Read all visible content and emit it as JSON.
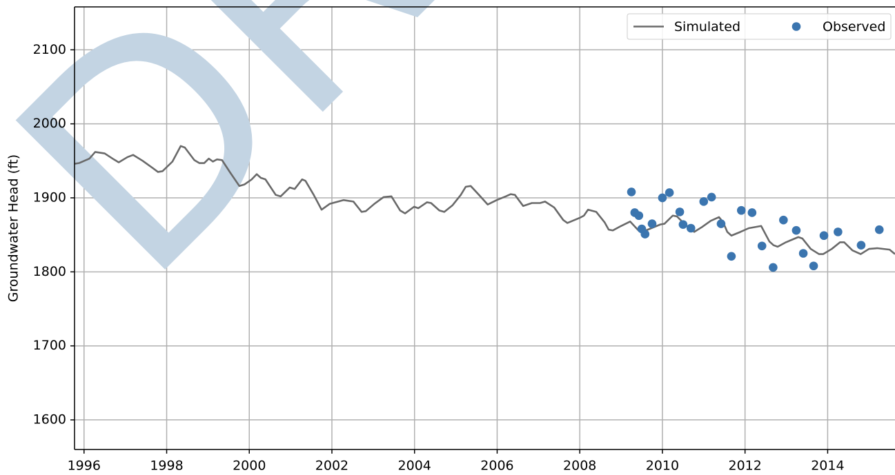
{
  "chart_data": {
    "type": "line",
    "watermark": "DRAFT",
    "y_label": "Groundwater Head (ft)",
    "xlim": [
      1995.77,
      2015.63
    ],
    "ylim": [
      1560,
      2158
    ],
    "xticks": [
      1996,
      1998,
      2000,
      2002,
      2004,
      2006,
      2008,
      2010,
      2012,
      2014
    ],
    "yticks": [
      1600,
      1700,
      1800,
      1900,
      2000,
      2100
    ],
    "grid": true,
    "legend": "upper right",
    "series": [
      {
        "name": "Simulated",
        "mode": "line",
        "color": "#696969",
        "x": [
          1995.77,
          1995.88,
          1996.13,
          1996.27,
          1996.5,
          1996.72,
          1996.84,
          1997.05,
          1997.19,
          1997.42,
          1997.67,
          1997.79,
          1997.9,
          1998.14,
          1998.34,
          1998.44,
          1998.67,
          1998.79,
          1998.91,
          1999.02,
          1999.12,
          1999.22,
          1999.34,
          1999.54,
          1999.76,
          1999.88,
          2000.06,
          2000.18,
          2000.28,
          2000.39,
          2000.64,
          2000.76,
          2000.98,
          2001.1,
          2001.28,
          2001.36,
          2001.56,
          2001.75,
          2001.95,
          2002.28,
          2002.52,
          2002.72,
          2002.82,
          2003.03,
          2003.25,
          2003.44,
          2003.65,
          2003.77,
          2003.99,
          2004.09,
          2004.3,
          2004.4,
          2004.6,
          2004.72,
          2004.92,
          2005.12,
          2005.24,
          2005.36,
          2005.56,
          2005.77,
          2005.99,
          2006.21,
          2006.33,
          2006.43,
          2006.63,
          2006.84,
          2007.04,
          2007.16,
          2007.38,
          2007.6,
          2007.7,
          2008.0,
          2008.1,
          2008.2,
          2008.4,
          2008.6,
          2008.7,
          2008.8,
          2009.0,
          2009.22,
          2009.42,
          2009.52,
          2009.73,
          2009.95,
          2010.05,
          2010.25,
          2010.35,
          2010.55,
          2010.77,
          2010.97,
          2011.17,
          2011.37,
          2011.47,
          2011.57,
          2011.67,
          2011.89,
          2012.09,
          2012.29,
          2012.39,
          2012.59,
          2012.69,
          2012.79,
          2012.99,
          2013.29,
          2013.39,
          2013.59,
          2013.79,
          2013.89,
          2014.1,
          2014.3,
          2014.4,
          2014.6,
          2014.8,
          2015.0,
          2015.2,
          2015.5,
          2015.63
        ],
        "values": [
          1946,
          1947,
          1953,
          1962,
          1960,
          1952,
          1948,
          1955,
          1958,
          1950,
          1940,
          1935,
          1936,
          1949,
          1970,
          1968,
          1951,
          1947,
          1947,
          1953,
          1949,
          1952,
          1951,
          1934,
          1916,
          1918,
          1925,
          1932,
          1927,
          1925,
          1904,
          1902,
          1914,
          1912,
          1925,
          1923,
          1904,
          1884,
          1892,
          1897,
          1895,
          1881,
          1882,
          1892,
          1901,
          1902,
          1883,
          1879,
          1888,
          1886,
          1894,
          1893,
          1883,
          1881,
          1890,
          1904,
          1915,
          1916,
          1904,
          1891,
          1897,
          1902,
          1905,
          1904,
          1889,
          1893,
          1893,
          1895,
          1887,
          1870,
          1866,
          1873,
          1876,
          1884,
          1881,
          1867,
          1857,
          1856,
          1862,
          1868,
          1856,
          1854,
          1859,
          1864,
          1865,
          1876,
          1875,
          1864,
          1854,
          1861,
          1869,
          1874,
          1867,
          1854,
          1849,
          1854,
          1859,
          1861,
          1862,
          1841,
          1836,
          1834,
          1840,
          1847,
          1845,
          1831,
          1824,
          1824,
          1831,
          1840,
          1840,
          1829,
          1824,
          1831,
          1832,
          1830,
          1824
        ]
      },
      {
        "name": "Observed",
        "mode": "markers",
        "color": "#3b75af",
        "x": [
          2009.25,
          2009.33,
          2009.43,
          2009.5,
          2009.58,
          2009.75,
          2010.0,
          2010.17,
          2010.42,
          2010.5,
          2010.69,
          2011.0,
          2011.19,
          2011.42,
          2011.67,
          2011.91,
          2012.17,
          2012.41,
          2012.68,
          2012.93,
          2013.24,
          2013.41,
          2013.66,
          2013.91,
          2014.25,
          2014.81,
          2015.25
        ],
        "values": [
          1908,
          1880,
          1876,
          1858,
          1851,
          1865,
          1900,
          1907,
          1881,
          1864,
          1859,
          1895,
          1901,
          1865,
          1821,
          1883,
          1880,
          1835,
          1806,
          1870,
          1856,
          1825,
          1808,
          1849,
          1854,
          1836,
          1857
        ]
      }
    ]
  }
}
